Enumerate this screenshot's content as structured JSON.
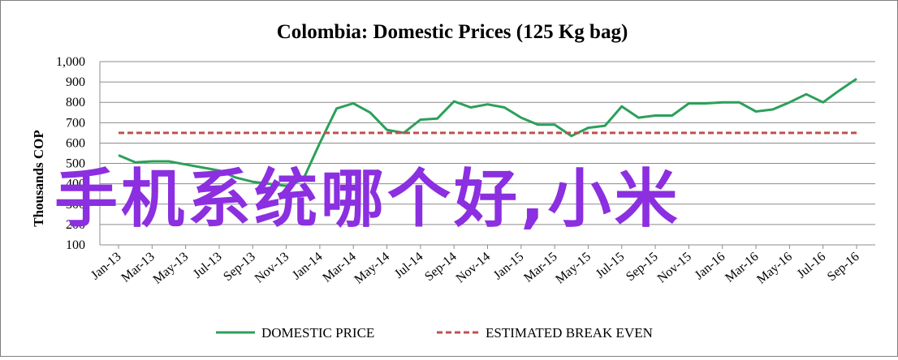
{
  "chart_data": {
    "type": "line",
    "title": "Colombia:  Domestic Prices (125 Kg bag)",
    "ylabel": "Thousands COP",
    "ylim": [
      100,
      1000
    ],
    "yticks": [
      "100",
      "200",
      "300",
      "400",
      "500",
      "600",
      "700",
      "800",
      "900",
      "1,000"
    ],
    "ytick_values": [
      100,
      200,
      300,
      400,
      500,
      600,
      700,
      800,
      900,
      1000
    ],
    "xticks": [
      "Jan-13",
      "Mar-13",
      "May-13",
      "Jul-13",
      "Sep-13",
      "Nov-13",
      "Jan-14",
      "Mar-14",
      "May-14",
      "Jul-14",
      "Sep-14",
      "Nov-14",
      "Jan-15",
      "Mar-15",
      "May-15",
      "Jul-15",
      "Sep-15",
      "Nov-15",
      "Jan-16",
      "Mar-16",
      "May-16",
      "Jul-16",
      "Sep-16"
    ],
    "grid": true,
    "legend_position": "bottom",
    "series": [
      {
        "name": "DOMESTIC PRICE",
        "color": "#2ca05a",
        "style": "solid",
        "values": [
          540,
          505,
          510,
          510,
          495,
          480,
          465,
          430,
          410,
          400,
          390,
          420,
          600,
          770,
          795,
          750,
          665,
          650,
          715,
          720,
          805,
          775,
          790,
          775,
          725,
          690,
          690,
          635,
          675,
          685,
          780,
          725,
          735,
          735,
          795,
          795,
          800,
          800,
          755,
          765,
          800,
          840,
          800,
          860,
          915
        ]
      },
      {
        "name": "ESTIMATED BREAK EVEN",
        "color": "#c0504d",
        "style": "dashed",
        "values": [
          650,
          650,
          650,
          650,
          650,
          650,
          650,
          650,
          650,
          650,
          650,
          650,
          650,
          650,
          650,
          650,
          650,
          650,
          650,
          650,
          650,
          650,
          650,
          650,
          650,
          650,
          650,
          650,
          650,
          650,
          650,
          650,
          650,
          650,
          650,
          650,
          650,
          650,
          650,
          650,
          650,
          650,
          650,
          650,
          650
        ]
      }
    ]
  },
  "overlay_text": "手机系统哪个好,小米"
}
